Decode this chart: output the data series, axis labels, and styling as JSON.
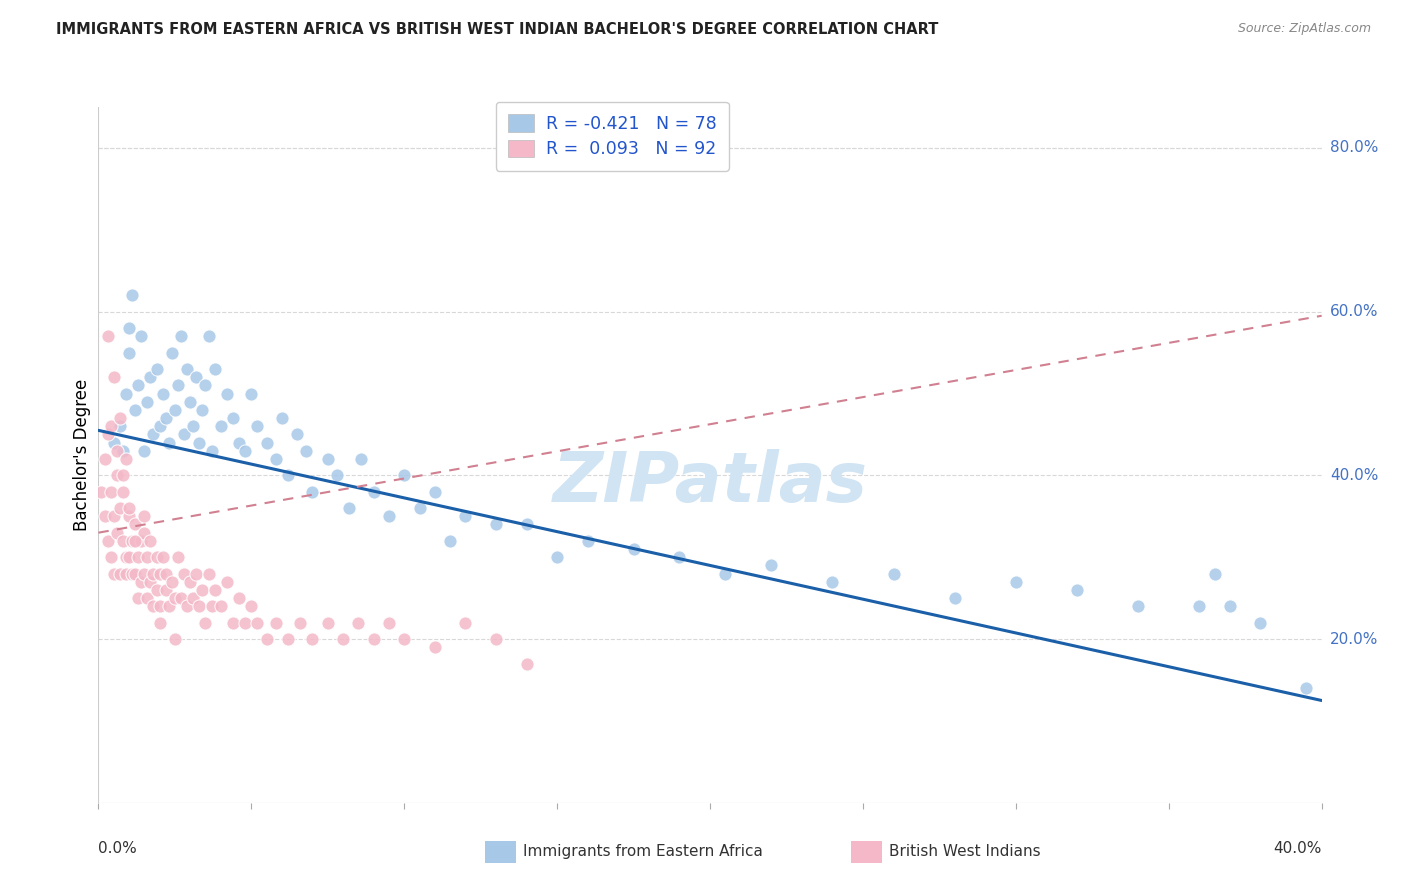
{
  "title": "IMMIGRANTS FROM EASTERN AFRICA VS BRITISH WEST INDIAN BACHELOR'S DEGREE CORRELATION CHART",
  "source": "Source: ZipAtlas.com",
  "ylabel": "Bachelor's Degree",
  "legend_R1": "R = -0.421",
  "legend_N1": "N = 78",
  "legend_R2": "R =  0.093",
  "legend_N2": "N = 92",
  "blue_color": "#a8c8e8",
  "pink_color": "#f4b8c8",
  "blue_line_color": "#1a5fa8",
  "pink_line_color": "#d08090",
  "watermark": "ZIPatlas",
  "watermark_color": "#d0e4f4",
  "right_ytick_vals": [
    0.2,
    0.4,
    0.6,
    0.8
  ],
  "blue_scatter_x": [
    0.005,
    0.007,
    0.008,
    0.009,
    0.01,
    0.01,
    0.011,
    0.012,
    0.013,
    0.014,
    0.015,
    0.016,
    0.017,
    0.018,
    0.019,
    0.02,
    0.021,
    0.022,
    0.023,
    0.024,
    0.025,
    0.026,
    0.027,
    0.028,
    0.029,
    0.03,
    0.031,
    0.032,
    0.033,
    0.034,
    0.035,
    0.036,
    0.037,
    0.038,
    0.04,
    0.042,
    0.044,
    0.046,
    0.048,
    0.05,
    0.052,
    0.055,
    0.058,
    0.06,
    0.062,
    0.065,
    0.068,
    0.07,
    0.075,
    0.078,
    0.082,
    0.086,
    0.09,
    0.095,
    0.1,
    0.105,
    0.11,
    0.115,
    0.12,
    0.13,
    0.14,
    0.15,
    0.16,
    0.175,
    0.19,
    0.205,
    0.22,
    0.24,
    0.26,
    0.28,
    0.3,
    0.32,
    0.34,
    0.36,
    0.365,
    0.37,
    0.38,
    0.395
  ],
  "blue_scatter_y": [
    0.44,
    0.46,
    0.43,
    0.5,
    0.55,
    0.58,
    0.62,
    0.48,
    0.51,
    0.57,
    0.43,
    0.49,
    0.52,
    0.45,
    0.53,
    0.46,
    0.5,
    0.47,
    0.44,
    0.55,
    0.48,
    0.51,
    0.57,
    0.45,
    0.53,
    0.49,
    0.46,
    0.52,
    0.44,
    0.48,
    0.51,
    0.57,
    0.43,
    0.53,
    0.46,
    0.5,
    0.47,
    0.44,
    0.43,
    0.5,
    0.46,
    0.44,
    0.42,
    0.47,
    0.4,
    0.45,
    0.43,
    0.38,
    0.42,
    0.4,
    0.36,
    0.42,
    0.38,
    0.35,
    0.4,
    0.36,
    0.38,
    0.32,
    0.35,
    0.34,
    0.34,
    0.3,
    0.32,
    0.31,
    0.3,
    0.28,
    0.29,
    0.27,
    0.28,
    0.25,
    0.27,
    0.26,
    0.24,
    0.24,
    0.28,
    0.24,
    0.22,
    0.14
  ],
  "pink_scatter_x": [
    0.001,
    0.002,
    0.002,
    0.003,
    0.003,
    0.004,
    0.004,
    0.005,
    0.005,
    0.006,
    0.006,
    0.007,
    0.007,
    0.008,
    0.008,
    0.009,
    0.009,
    0.01,
    0.01,
    0.011,
    0.011,
    0.012,
    0.012,
    0.013,
    0.013,
    0.014,
    0.014,
    0.015,
    0.015,
    0.016,
    0.016,
    0.017,
    0.017,
    0.018,
    0.018,
    0.019,
    0.019,
    0.02,
    0.02,
    0.021,
    0.022,
    0.022,
    0.023,
    0.024,
    0.025,
    0.026,
    0.027,
    0.028,
    0.029,
    0.03,
    0.031,
    0.032,
    0.033,
    0.034,
    0.035,
    0.036,
    0.037,
    0.038,
    0.04,
    0.042,
    0.044,
    0.046,
    0.048,
    0.05,
    0.052,
    0.055,
    0.058,
    0.062,
    0.066,
    0.07,
    0.075,
    0.08,
    0.085,
    0.09,
    0.095,
    0.1,
    0.11,
    0.12,
    0.13,
    0.14,
    0.003,
    0.004,
    0.005,
    0.006,
    0.007,
    0.008,
    0.009,
    0.01,
    0.012,
    0.015,
    0.02,
    0.025
  ],
  "pink_scatter_y": [
    0.38,
    0.42,
    0.35,
    0.45,
    0.32,
    0.38,
    0.3,
    0.35,
    0.28,
    0.4,
    0.33,
    0.36,
    0.28,
    0.38,
    0.32,
    0.3,
    0.28,
    0.35,
    0.3,
    0.32,
    0.28,
    0.34,
    0.28,
    0.3,
    0.25,
    0.32,
    0.27,
    0.33,
    0.28,
    0.3,
    0.25,
    0.32,
    0.27,
    0.28,
    0.24,
    0.3,
    0.26,
    0.28,
    0.24,
    0.3,
    0.26,
    0.28,
    0.24,
    0.27,
    0.25,
    0.3,
    0.25,
    0.28,
    0.24,
    0.27,
    0.25,
    0.28,
    0.24,
    0.26,
    0.22,
    0.28,
    0.24,
    0.26,
    0.24,
    0.27,
    0.22,
    0.25,
    0.22,
    0.24,
    0.22,
    0.2,
    0.22,
    0.2,
    0.22,
    0.2,
    0.22,
    0.2,
    0.22,
    0.2,
    0.22,
    0.2,
    0.19,
    0.22,
    0.2,
    0.17,
    0.57,
    0.46,
    0.52,
    0.43,
    0.47,
    0.4,
    0.42,
    0.36,
    0.32,
    0.35,
    0.22,
    0.2
  ],
  "blue_line_x": [
    0.0,
    0.4
  ],
  "blue_line_y": [
    0.455,
    0.125
  ],
  "pink_line_x": [
    0.0,
    0.4
  ],
  "pink_line_y": [
    0.33,
    0.595
  ],
  "xmin": 0.0,
  "xmax": 0.4,
  "ymin": 0.0,
  "ymax": 0.85
}
